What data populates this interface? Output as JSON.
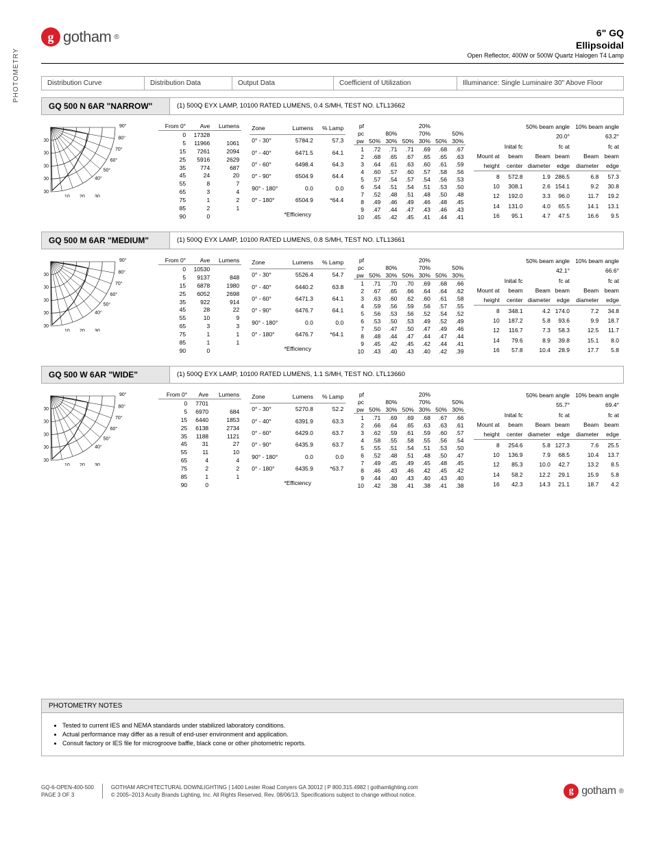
{
  "brand": "gotham",
  "header": {
    "line1": "6\" GQ",
    "line2": "Ellipsoidal",
    "line3": "Open Reflector, 400W or 500W Quartz Halogen T4 Lamp"
  },
  "sidebar_label": "PHOTOMETRY",
  "column_headers": {
    "c1": "Distribution Curve",
    "c2": "Distribution Data",
    "c3": "Output Data",
    "c4": "Coefficient of Utilization",
    "c5": "Illuminance: Single Luminaire 30\" Above Floor"
  },
  "sections": [
    {
      "title": "GQ 500 N 6AR \"NARROW\"",
      "desc": "(1) 500Q EYX LAMP, 10100 RATED LUMENS, 0.4 S/MH, TEST NO. LTL13662",
      "chart_yticks": [
        "3400",
        "6800",
        "10200",
        "13600",
        "17000"
      ],
      "beam50": "20.0°",
      "beam10": "63.2°",
      "dist_rows": [
        [
          "0",
          "17328",
          ""
        ],
        [
          "5",
          "11966",
          "1061"
        ],
        [
          "15",
          "7261",
          "2094"
        ],
        [
          "25",
          "5916",
          "2629"
        ],
        [
          "35",
          "774",
          "687"
        ],
        [
          "45",
          "24",
          "20"
        ],
        [
          "55",
          "8",
          "7"
        ],
        [
          "65",
          "3",
          "4"
        ],
        [
          "75",
          "1",
          "2"
        ],
        [
          "85",
          "2",
          "1"
        ],
        [
          "90",
          "0",
          ""
        ]
      ],
      "zone_rows": [
        [
          "0° - 30°",
          "5784.2",
          "57.3"
        ],
        [
          "0° - 40°",
          "6471.5",
          "64.1"
        ],
        [
          "0° - 60°",
          "6498.4",
          "64.3"
        ],
        [
          "0° - 90°",
          "6504.9",
          "64.4"
        ],
        [
          "90° - 180°",
          "0.0",
          "0.0"
        ],
        [
          "0° - 180°",
          "6504.9",
          "*64.4"
        ]
      ],
      "eff_label": "*Efficiency",
      "cu_rows": [
        [
          "1",
          ".72",
          ".71",
          ".71",
          ".69",
          ".68",
          ".67"
        ],
        [
          "2",
          ".68",
          ".65",
          ".67",
          ".65",
          ".65",
          ".63"
        ],
        [
          "3",
          ".64",
          ".61",
          ".63",
          ".60",
          ".61",
          ".59"
        ],
        [
          "4",
          ".60",
          ".57",
          ".60",
          ".57",
          ".58",
          ".56"
        ],
        [
          "5",
          ".57",
          ".54",
          ".57",
          ".54",
          ".56",
          ".53"
        ],
        [
          "6",
          ".54",
          ".51",
          ".54",
          ".51",
          ".53",
          ".50"
        ],
        [
          "7",
          ".52",
          ".48",
          ".51",
          ".48",
          ".50",
          ".48"
        ],
        [
          "8",
          ".49",
          ".46",
          ".49",
          ".46",
          ".48",
          ".45"
        ],
        [
          "9",
          ".47",
          ".44",
          ".47",
          ".43",
          ".46",
          ".43"
        ],
        [
          "10",
          ".45",
          ".42",
          ".45",
          ".41",
          ".44",
          ".41"
        ]
      ],
      "ill_rows": [
        [
          "8",
          "572.8",
          "1.9",
          "286.5",
          "6.8",
          "57.3"
        ],
        [
          "10",
          "308.1",
          "2.6",
          "154.1",
          "9.2",
          "30.8"
        ],
        [
          "12",
          "192.0",
          "3.3",
          "96.0",
          "11.7",
          "19.2"
        ],
        [
          "14",
          "131.0",
          "4.0",
          "65.5",
          "14.1",
          "13.1"
        ],
        [
          "16",
          "95.1",
          "4.7",
          "47.5",
          "16.6",
          "9.5"
        ]
      ]
    },
    {
      "title": "GQ 500 M 6AR \"MEDIUM\"",
      "desc": "(1) 500Q EYX LAMP, 10100 RATED LUMENS, 0.8 S/MH, TEST NO. LTL13661",
      "chart_yticks": [
        "2100",
        "4200",
        "6300",
        "8400",
        "10500"
      ],
      "beam50": "42.1°",
      "beam10": "66.6°",
      "dist_rows": [
        [
          "0",
          "10530",
          ""
        ],
        [
          "5",
          "9137",
          "848"
        ],
        [
          "15",
          "6878",
          "1980"
        ],
        [
          "25",
          "6052",
          "2698"
        ],
        [
          "35",
          "922",
          "914"
        ],
        [
          "45",
          "28",
          "22"
        ],
        [
          "55",
          "10",
          "9"
        ],
        [
          "65",
          "3",
          "3"
        ],
        [
          "75",
          "1",
          "1"
        ],
        [
          "85",
          "1",
          "1"
        ],
        [
          "90",
          "0",
          ""
        ]
      ],
      "zone_rows": [
        [
          "0° - 30°",
          "5526.4",
          "54.7"
        ],
        [
          "0° - 40°",
          "6440.2",
          "63.8"
        ],
        [
          "0° - 60°",
          "6471.3",
          "64.1"
        ],
        [
          "0° - 90°",
          "6476.7",
          "64.1"
        ],
        [
          "90° - 180°",
          "0.0",
          "0.0"
        ],
        [
          "0° - 180°",
          "6476.7",
          "*64.1"
        ]
      ],
      "eff_label": "*Efficiency",
      "cu_rows": [
        [
          "1",
          ".71",
          ".70",
          ".70",
          ".69",
          ".68",
          ".66"
        ],
        [
          "2",
          ".67",
          ".65",
          ".66",
          ".64",
          ".64",
          ".62"
        ],
        [
          "3",
          ".63",
          ".60",
          ".62",
          ".60",
          ".61",
          ".58"
        ],
        [
          "4",
          ".59",
          ".56",
          ".59",
          ".56",
          ".57",
          ".55"
        ],
        [
          "5",
          ".56",
          ".53",
          ".56",
          ".52",
          ".54",
          ".52"
        ],
        [
          "6",
          ".53",
          ".50",
          ".53",
          ".49",
          ".52",
          ".49"
        ],
        [
          "7",
          ".50",
          ".47",
          ".50",
          ".47",
          ".49",
          ".46"
        ],
        [
          "8",
          ".48",
          ".44",
          ".47",
          ".44",
          ".47",
          ".44"
        ],
        [
          "9",
          ".45",
          ".42",
          ".45",
          ".42",
          ".44",
          ".41"
        ],
        [
          "10",
          ".43",
          ".40",
          ".43",
          ".40",
          ".42",
          ".39"
        ]
      ],
      "ill_rows": [
        [
          "8",
          "348.1",
          "4.2",
          "174.0",
          "7.2",
          "34.8"
        ],
        [
          "10",
          "187.2",
          "5.8",
          "93.6",
          "9.9",
          "18.7"
        ],
        [
          "12",
          "116.7",
          "7.3",
          "58.3",
          "12.5",
          "11.7"
        ],
        [
          "14",
          "79.6",
          "8.9",
          "39.8",
          "15.1",
          "8.0"
        ],
        [
          "16",
          "57.8",
          "10.4",
          "28.9",
          "17.7",
          "5.8"
        ]
      ]
    },
    {
      "title": "GQ 500 W 6AR \"WIDE\"",
      "desc": "(1) 500Q EYX LAMP, 10100 RATED LUMENS, 1.1 S/MH, TEST NO. LTL13660",
      "chart_yticks": [
        "1500",
        "3000",
        "4500",
        "6000",
        "7500"
      ],
      "beam50": "55.7°",
      "beam10": "69.4°",
      "dist_rows": [
        [
          "0",
          "7701",
          ""
        ],
        [
          "5",
          "6970",
          "684"
        ],
        [
          "15",
          "6440",
          "1853"
        ],
        [
          "25",
          "6138",
          "2734"
        ],
        [
          "35",
          "1188",
          "1121"
        ],
        [
          "45",
          "31",
          "27"
        ],
        [
          "55",
          "11",
          "10"
        ],
        [
          "65",
          "4",
          "4"
        ],
        [
          "75",
          "2",
          "2"
        ],
        [
          "85",
          "1",
          "1"
        ],
        [
          "90",
          "0",
          ""
        ]
      ],
      "zone_rows": [
        [
          "0° - 30°",
          "5270.8",
          "52.2"
        ],
        [
          "0° - 40°",
          "6391.9",
          "63.3"
        ],
        [
          "0° - 60°",
          "6429.0",
          "63.7"
        ],
        [
          "0° - 90°",
          "6435.9",
          "63.7"
        ],
        [
          "90° - 180°",
          "0.0",
          "0.0"
        ],
        [
          "0° - 180°",
          "6435.9",
          "*63.7"
        ]
      ],
      "eff_label": "*Efficiency",
      "cu_rows": [
        [
          "1",
          ".71",
          ".69",
          ".69",
          ".68",
          ".67",
          ".66"
        ],
        [
          "2",
          ".66",
          ".64",
          ".65",
          ".63",
          ".63",
          ".61"
        ],
        [
          "3",
          ".62",
          ".59",
          ".61",
          ".59",
          ".60",
          ".57"
        ],
        [
          "4",
          ".58",
          ".55",
          ".58",
          ".55",
          ".56",
          ".54"
        ],
        [
          "5",
          ".55",
          ".51",
          ".54",
          ".51",
          ".53",
          ".50"
        ],
        [
          "6",
          ".52",
          ".48",
          ".51",
          ".48",
          ".50",
          ".47"
        ],
        [
          "7",
          ".49",
          ".45",
          ".49",
          ".45",
          ".48",
          ".45"
        ],
        [
          "8",
          ".46",
          ".43",
          ".46",
          ".42",
          ".45",
          ".42"
        ],
        [
          "9",
          ".44",
          ".40",
          ".43",
          ".40",
          ".43",
          ".40"
        ],
        [
          "10",
          ".42",
          ".38",
          ".41",
          ".38",
          ".41",
          ".38"
        ]
      ],
      "ill_rows": [
        [
          "8",
          "254.6",
          "5.8",
          "127.3",
          "7.6",
          "25.5"
        ],
        [
          "10",
          "136.9",
          "7.9",
          "68.5",
          "10.4",
          "13.7"
        ],
        [
          "12",
          "85.3",
          "10.0",
          "42.7",
          "13.2",
          "8.5"
        ],
        [
          "14",
          "58.2",
          "12.2",
          "29.1",
          "15.9",
          "5.8"
        ],
        [
          "16",
          "42.3",
          "14.3",
          "21.1",
          "18.7",
          "4.2"
        ]
      ]
    }
  ],
  "table_headers": {
    "dist": [
      "From 0°",
      "Ave",
      "Lumens"
    ],
    "zone": [
      "Zone",
      "Lumens",
      "% Lamp"
    ],
    "cu_top": [
      "pf",
      "",
      "20%",
      ""
    ],
    "cu_mid": [
      "pc",
      "80%",
      "70%",
      "50%"
    ],
    "cu_sub": [
      "pw",
      "50%",
      "30%",
      "50%",
      "30%",
      "50%",
      "30%"
    ],
    "ill_top": [
      "",
      "50% beam angle",
      "10% beam angle"
    ],
    "ill_r1": [
      "",
      "Inital fc",
      "",
      "fc at",
      "",
      "fc at"
    ],
    "ill_r2": [
      "Mount at",
      "beam",
      "Beam",
      "beam",
      "Beam",
      "beam"
    ],
    "ill_r3": [
      "height",
      "center",
      "diameter",
      "edge",
      "diameter",
      "edge"
    ]
  },
  "notes": {
    "title": "PHOTOMETRY NOTES",
    "items": [
      "Tested to current IES and NEMA standards under stabilized laboratory conditions.",
      "Actual performance may differ as a result of end-user environment and application.",
      "Consult factory or IES file for microgroove baffle, black cone or other photometric reports."
    ]
  },
  "footer": {
    "code": "GQ-6-OPEN-400-500",
    "page": "PAGE 3 OF 3",
    "addr": "GOTHAM ARCHITECTURAL DOWNLIGHTING  |  1400 Lester Road Conyers GA 30012  |  P 800.315.4982  |  gothamlighting.com",
    "copy": "© 2005–2013 Acuity Brands Lighting, Inc. All Rights Reserved. Rev. 08/06/13. Specifications subject to change without notice."
  }
}
